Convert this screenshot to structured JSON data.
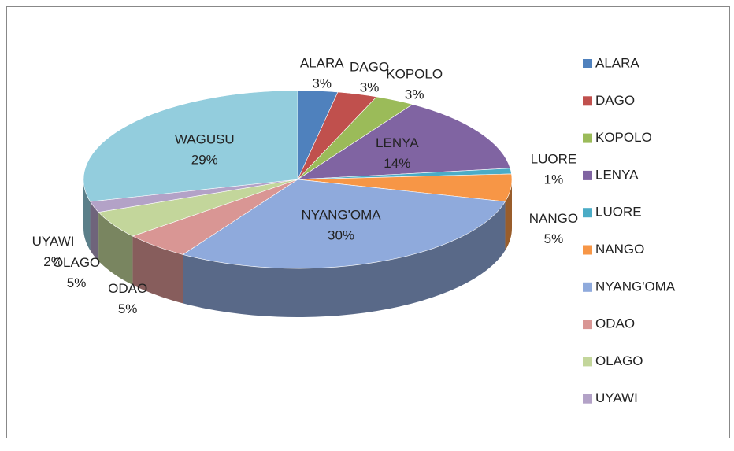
{
  "chart_data": {
    "type": "pie",
    "categories": [
      "ALARA",
      "DAGO",
      "KOPOLO",
      "LENYA",
      "LUORE",
      "NANGO",
      "NYANG'OMA",
      "ODAO",
      "OLAGO",
      "UYAWI",
      "WAGUSU"
    ],
    "values": [
      3,
      3,
      3,
      14,
      1,
      5,
      30,
      5,
      5,
      2,
      29
    ],
    "value_labels": [
      "3%",
      "3%",
      "3%",
      "14%",
      "1%",
      "5%",
      "30%",
      "5%",
      "5%",
      "2%",
      "29%"
    ],
    "colors": [
      "#4f81bd",
      "#c0504d",
      "#9bbb59",
      "#8064a2",
      "#4bacc6",
      "#f79646",
      "#8faadc",
      "#d99694",
      "#c3d69b",
      "#b3a2c7",
      "#93cddd"
    ],
    "legend": "right"
  }
}
